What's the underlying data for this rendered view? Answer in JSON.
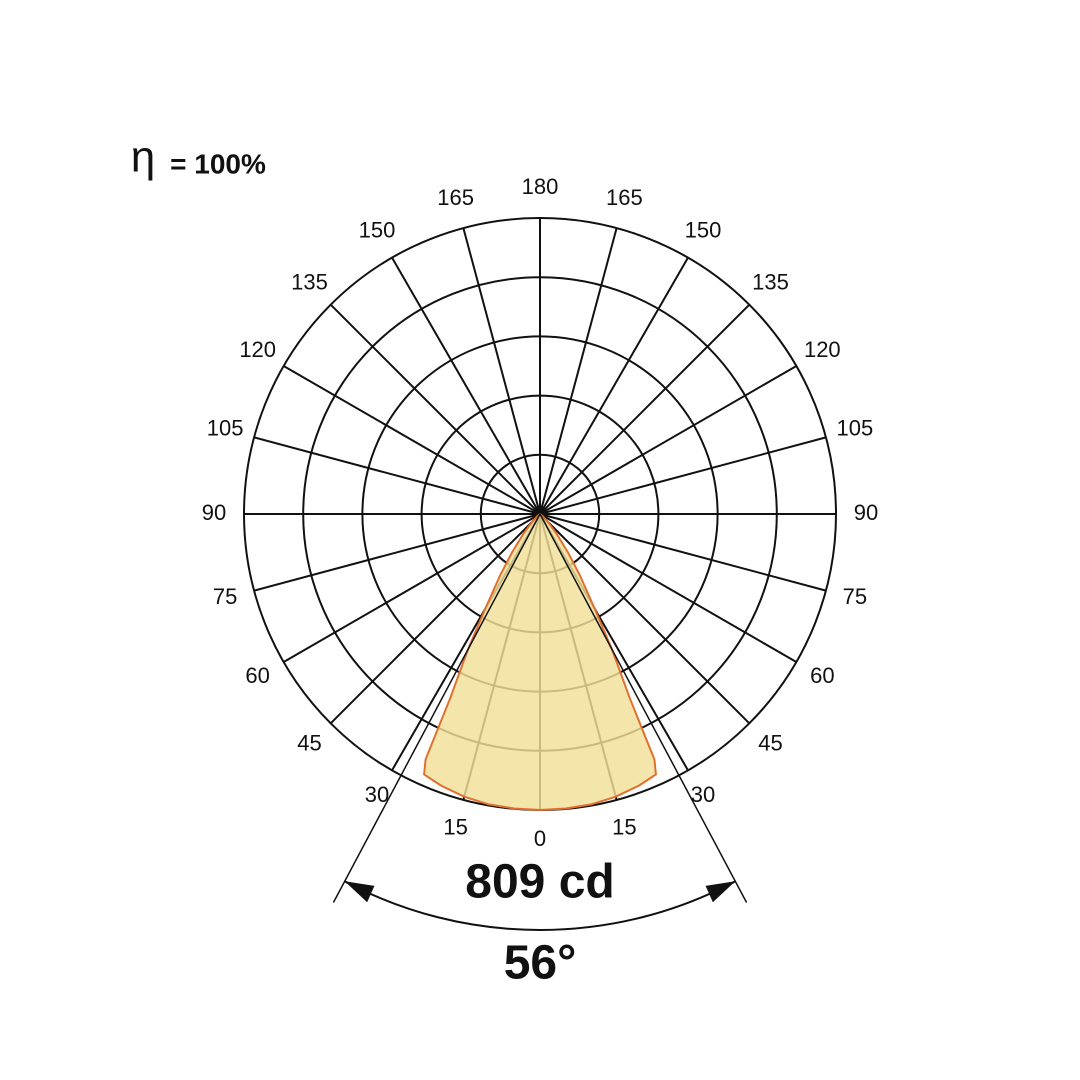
{
  "chart_data": {
    "type": "polar",
    "efficiency_symbol": "η",
    "efficiency": "= 100%",
    "angle_ticks": [
      0,
      15,
      30,
      45,
      60,
      75,
      90,
      105,
      120,
      135,
      150,
      165,
      180
    ],
    "rlim": [
      0,
      809
    ],
    "rgrid": 5,
    "angles": [
      0,
      5,
      10,
      15,
      20,
      22,
      24,
      25,
      26,
      28,
      30,
      33,
      36,
      40,
      45,
      50,
      60
    ],
    "values": [
      809,
      808,
      806,
      800,
      790,
      784,
      779,
      740,
      560,
      420,
      300,
      200,
      130,
      70,
      30,
      10,
      0
    ],
    "color": "#f2df98",
    "line_color": "#e07030",
    "max_intensity": {
      "value": 809,
      "label": "809 cd"
    },
    "beam_angle": {
      "value": 56,
      "label": "56°"
    }
  }
}
